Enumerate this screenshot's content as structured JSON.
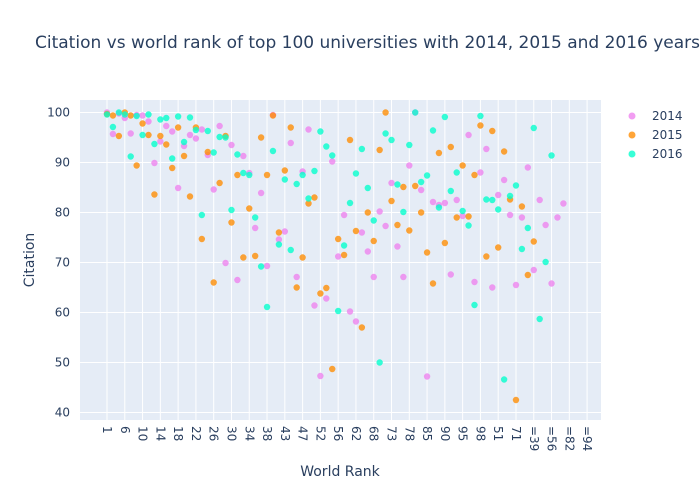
{
  "chart_data": {
    "type": "scatter",
    "title": "Citation vs world rank of top 100 universities with 2014, 2015 and 2016 years",
    "xlabel": "World Rank",
    "ylabel": "Citation",
    "x_tick_labels": [
      "1",
      "6",
      "10",
      "14",
      "18",
      "22",
      "26",
      "30",
      "34",
      "38",
      "43",
      "47",
      "52",
      "56",
      "62",
      "68",
      "73",
      "78",
      "85",
      "90",
      "95",
      "98",
      "51",
      "71",
      "=39",
      "=56",
      "=82",
      "=94"
    ],
    "ylim": [
      38.5,
      102.5
    ],
    "y_ticks": [
      40,
      50,
      60,
      70,
      80,
      90,
      100
    ],
    "grid": true,
    "legend": "top-right",
    "series": [
      {
        "name": "2014",
        "color": "#ee82ee",
        "points": [
          [
            0,
            100
          ],
          [
            1,
            95.7
          ],
          [
            2,
            99.8
          ],
          [
            3,
            98.9
          ],
          [
            4,
            95.8
          ],
          [
            5,
            99.5
          ],
          [
            6,
            99.4
          ],
          [
            7,
            98.2
          ],
          [
            8,
            89.9
          ],
          [
            9,
            94.2
          ],
          [
            10,
            97.3
          ],
          [
            11,
            96.2
          ],
          [
            12,
            84.9
          ],
          [
            13,
            93.3
          ],
          [
            14,
            95.5
          ],
          [
            15,
            94.8
          ],
          [
            16,
            96.6
          ],
          [
            17,
            91.5
          ],
          [
            18,
            84.6
          ],
          [
            19,
            97.3
          ],
          [
            20,
            69.9
          ],
          [
            21,
            93.5
          ],
          [
            22,
            66.5
          ],
          [
            23,
            91.3
          ],
          [
            24,
            87.9
          ],
          [
            25,
            76.9
          ],
          [
            26,
            83.9
          ],
          [
            27,
            69.3
          ],
          [
            28,
            99.5
          ],
          [
            29,
            74.6
          ],
          [
            30,
            76.2
          ],
          [
            31,
            93.9
          ],
          [
            32,
            67.1
          ],
          [
            33,
            88.2
          ],
          [
            34,
            96.6
          ],
          [
            35,
            61.4
          ],
          [
            36,
            47.3
          ],
          [
            37,
            62.8
          ],
          [
            38,
            90.2
          ],
          [
            39,
            71.2
          ],
          [
            40,
            79.5
          ],
          [
            41,
            60.2
          ],
          [
            42,
            58.2
          ],
          [
            43,
            76.0
          ],
          [
            44,
            72.2
          ],
          [
            45,
            67.1
          ],
          [
            46,
            80.2
          ],
          [
            47,
            77.3
          ],
          [
            48,
            85.9
          ],
          [
            49,
            73.2
          ],
          [
            50,
            67.1
          ],
          [
            51,
            89.4
          ],
          [
            52,
            100
          ],
          [
            53,
            84.5
          ],
          [
            54,
            47.2
          ],
          [
            55,
            82.1
          ],
          [
            56,
            81.5
          ],
          [
            57,
            81.9
          ],
          [
            58,
            67.6
          ],
          [
            59,
            82.5
          ],
          [
            60,
            79.3
          ],
          [
            61,
            95.5
          ],
          [
            62,
            66.1
          ],
          [
            63,
            88.0
          ],
          [
            64,
            92.7
          ],
          [
            65,
            65.0
          ],
          [
            66,
            83.5
          ],
          [
            67,
            86.5
          ],
          [
            68,
            79.5
          ],
          [
            69,
            65.5
          ],
          [
            70,
            79.0
          ],
          [
            71,
            89.0
          ],
          [
            72,
            68.5
          ],
          [
            73,
            82.5
          ],
          [
            74,
            77.5
          ],
          [
            75,
            65.8
          ],
          [
            76,
            79.0
          ],
          [
            77,
            81.8
          ]
        ]
      },
      {
        "name": "2015",
        "color": "#ff8c00",
        "points": [
          [
            0,
            99.7
          ],
          [
            1,
            99.4
          ],
          [
            2,
            95.3
          ],
          [
            3,
            100
          ],
          [
            4,
            99.4
          ],
          [
            5,
            89.4
          ],
          [
            6,
            97.8
          ],
          [
            7,
            95.5
          ],
          [
            8,
            83.6
          ],
          [
            9,
            95.3
          ],
          [
            10,
            93.6
          ],
          [
            11,
            88.9
          ],
          [
            12,
            97.0
          ],
          [
            13,
            91.3
          ],
          [
            14,
            83.2
          ],
          [
            15,
            97.0
          ],
          [
            16,
            74.7
          ],
          [
            17,
            92.1
          ],
          [
            18,
            66.0
          ],
          [
            19,
            85.9
          ],
          [
            20,
            95.3
          ],
          [
            21,
            78.0
          ],
          [
            22,
            87.5
          ],
          [
            23,
            71.0
          ],
          [
            24,
            80.8
          ],
          [
            25,
            71.3
          ],
          [
            26,
            95.0
          ],
          [
            27,
            87.5
          ],
          [
            28,
            99.4
          ],
          [
            29,
            76.0
          ],
          [
            30,
            88.4
          ],
          [
            31,
            97.0
          ],
          [
            32,
            65.0
          ],
          [
            33,
            71.0
          ],
          [
            34,
            81.8
          ],
          [
            35,
            83.0
          ],
          [
            36,
            63.8
          ],
          [
            37,
            64.9
          ],
          [
            38,
            48.7
          ],
          [
            39,
            74.7
          ],
          [
            40,
            71.5
          ],
          [
            41,
            94.5
          ],
          [
            42,
            76.3
          ],
          [
            43,
            57.0
          ],
          [
            44,
            80.0
          ],
          [
            45,
            74.3
          ],
          [
            46,
            92.5
          ],
          [
            47,
            100
          ],
          [
            48,
            82.3
          ],
          [
            49,
            77.5
          ],
          [
            50,
            85.1
          ],
          [
            51,
            76.4
          ],
          [
            52,
            85.3
          ],
          [
            53,
            80.0
          ],
          [
            54,
            72.0
          ],
          [
            55,
            65.8
          ],
          [
            56,
            91.9
          ],
          [
            57,
            73.9
          ],
          [
            58,
            93.1
          ],
          [
            59,
            79.0
          ],
          [
            60,
            89.4
          ],
          [
            61,
            79.2
          ],
          [
            62,
            87.5
          ],
          [
            63,
            97.4
          ],
          [
            64,
            71.2
          ],
          [
            65,
            96.3
          ],
          [
            66,
            73.0
          ],
          [
            67,
            92.2
          ],
          [
            68,
            82.6
          ],
          [
            69,
            42.5
          ],
          [
            70,
            81.2
          ],
          [
            71,
            67.5
          ],
          [
            72,
            74.2
          ]
        ]
      },
      {
        "name": "2016",
        "color": "#00ffcc",
        "points": [
          [
            0,
            99.6
          ],
          [
            1,
            97.1
          ],
          [
            2,
            100
          ],
          [
            3,
            99.6
          ],
          [
            4,
            91.2
          ],
          [
            5,
            99.3
          ],
          [
            6,
            95.5
          ],
          [
            7,
            99.6
          ],
          [
            8,
            93.7
          ],
          [
            9,
            98.6
          ],
          [
            10,
            98.9
          ],
          [
            11,
            90.8
          ],
          [
            12,
            99.2
          ],
          [
            13,
            94.1
          ],
          [
            14,
            99.0
          ],
          [
            15,
            96.5
          ],
          [
            16,
            79.5
          ],
          [
            17,
            96.3
          ],
          [
            18,
            92.0
          ],
          [
            19,
            95.1
          ],
          [
            20,
            95.0
          ],
          [
            21,
            80.5
          ],
          [
            22,
            91.6
          ],
          [
            23,
            87.9
          ],
          [
            24,
            87.5
          ],
          [
            25,
            79.0
          ],
          [
            26,
            69.2
          ],
          [
            27,
            61.1
          ],
          [
            28,
            92.3
          ],
          [
            29,
            73.6
          ],
          [
            30,
            86.6
          ],
          [
            31,
            72.5
          ],
          [
            32,
            85.7
          ],
          [
            33,
            87.5
          ],
          [
            34,
            82.8
          ],
          [
            35,
            88.3
          ],
          [
            36,
            96.2
          ],
          [
            37,
            93.2
          ],
          [
            38,
            91.4
          ],
          [
            39,
            60.3
          ],
          [
            40,
            73.4
          ],
          [
            41,
            81.9
          ],
          [
            42,
            87.8
          ],
          [
            43,
            92.7
          ],
          [
            44,
            84.9
          ],
          [
            45,
            78.4
          ],
          [
            46,
            50.0
          ],
          [
            47,
            95.8
          ],
          [
            48,
            94.5
          ],
          [
            49,
            85.6
          ],
          [
            50,
            80.1
          ],
          [
            51,
            93.5
          ],
          [
            52,
            100
          ],
          [
            53,
            86.1
          ],
          [
            54,
            87.4
          ],
          [
            55,
            96.4
          ],
          [
            56,
            81.0
          ],
          [
            57,
            99.1
          ],
          [
            58,
            84.3
          ],
          [
            59,
            88.0
          ],
          [
            60,
            80.3
          ],
          [
            61,
            77.4
          ],
          [
            62,
            61.5
          ],
          [
            63,
            99.3
          ],
          [
            64,
            82.6
          ],
          [
            65,
            82.5
          ],
          [
            66,
            80.6
          ],
          [
            67,
            46.6
          ],
          [
            68,
            83.3
          ],
          [
            69,
            85.4
          ],
          [
            70,
            72.7
          ],
          [
            71,
            76.9
          ],
          [
            72,
            96.9
          ],
          [
            73,
            58.7
          ],
          [
            74,
            70.1
          ],
          [
            75,
            91.4
          ]
        ]
      }
    ]
  }
}
